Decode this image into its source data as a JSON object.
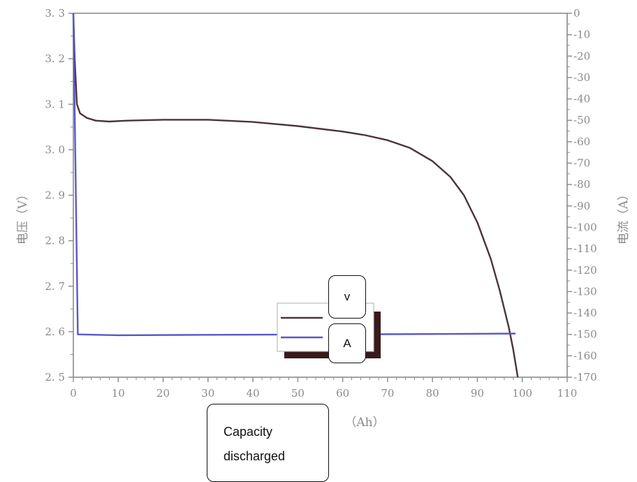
{
  "chart_data": {
    "type": "line",
    "left_axis": {
      "label": "电压（V）",
      "ylim": [
        2.5,
        3.3
      ],
      "ticks": [
        "2. 5",
        "2. 6",
        "2. 7",
        "2. 8",
        "2. 9",
        "3. 0",
        "3. 1",
        "3. 2",
        "3. 3"
      ]
    },
    "right_axis": {
      "label": "电流（A）",
      "ylim": [
        -170,
        0
      ],
      "ticks": [
        "0",
        "-10",
        "-20",
        "-30",
        "-40",
        "-50",
        "-60",
        "-70",
        "-80",
        "-90",
        "-100",
        "-110",
        "-120",
        "-130",
        "-140",
        "-150",
        "-160",
        "-170"
      ]
    },
    "x_axis": {
      "label": "（Ah）",
      "xlim": [
        0,
        110
      ],
      "ticks": [
        "0",
        "10",
        "20",
        "30",
        "40",
        "50",
        "60",
        "70",
        "80",
        "90",
        "100",
        "110"
      ]
    },
    "series": [
      {
        "name": "V",
        "axis": "left",
        "color": "#4a3438",
        "x": [
          0,
          0.3,
          0.8,
          1.5,
          3,
          5,
          8,
          12,
          20,
          30,
          40,
          50,
          60,
          65,
          70,
          75,
          80,
          84,
          87,
          90,
          93,
          95,
          97,
          98,
          99
        ],
        "y": [
          3.3,
          3.2,
          3.1,
          3.08,
          3.07,
          3.064,
          3.062,
          3.064,
          3.066,
          3.066,
          3.061,
          3.052,
          3.04,
          3.032,
          3.021,
          3.004,
          2.975,
          2.94,
          2.9,
          2.84,
          2.76,
          2.69,
          2.61,
          2.56,
          2.5
        ]
      },
      {
        "name": "A",
        "axis": "right",
        "color": "#5858c8",
        "x": [
          0,
          0.5,
          1,
          10,
          30,
          60,
          90,
          98.5
        ],
        "y": [
          0,
          -75,
          -150,
          -150.4,
          -150.2,
          -150.0,
          -149.7,
          -149.6
        ]
      }
    ],
    "legend": {
      "position": "bottom-center"
    },
    "grid": false
  },
  "annotations": {
    "v_label": "V",
    "a_label": "A",
    "capacity_label_line1": "Capacity",
    "capacity_label_line2": "discharged"
  }
}
